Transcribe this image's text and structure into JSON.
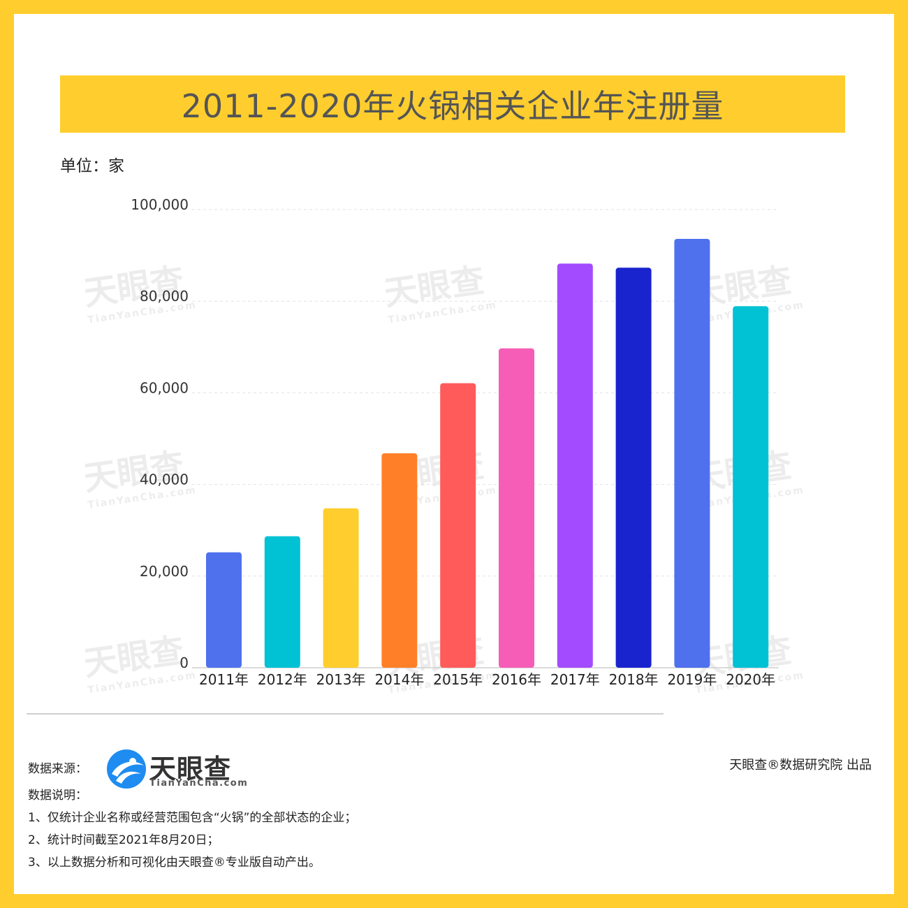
{
  "title": "2011-2020年火锅相关企业年注册量",
  "unit_label": "单位：家",
  "chart_data": {
    "type": "bar",
    "categories": [
      "2011年",
      "2012年",
      "2013年",
      "2014年",
      "2015年",
      "2016年",
      "2017年",
      "2018年",
      "2019年",
      "2020年"
    ],
    "values": [
      25200,
      28700,
      34800,
      46800,
      62100,
      69700,
      88200,
      87300,
      93600,
      78900
    ],
    "colors": [
      "#4F71EE",
      "#00C2D4",
      "#FFCE2E",
      "#FF7F28",
      "#FF5B5B",
      "#F55DB6",
      "#A34BFF",
      "#1924CE",
      "#4F71EE",
      "#00C2D4"
    ],
    "ylim": [
      0,
      100000
    ],
    "yticks": [
      "0",
      "20,000",
      "40,000",
      "60,000",
      "80,000",
      "100,000"
    ],
    "ytick_values": [
      0,
      20000,
      40000,
      60000,
      80000,
      100000
    ],
    "grid": true,
    "legend": "none"
  },
  "footer": {
    "source_label": "数据来源：",
    "notes_label": "数据说明：",
    "notes": [
      "1、仅统计企业名称或经营范围包含“火锅”的全部状态的企业；",
      "2、统计时间截至2021年8月20日；",
      "3、以上数据分析和可视化由天眼查®专业版自动产出。"
    ],
    "credit": "天眼查®数据研究院 出品"
  },
  "logo": {
    "name": "天眼查",
    "domain": "TianYanCha.com"
  }
}
